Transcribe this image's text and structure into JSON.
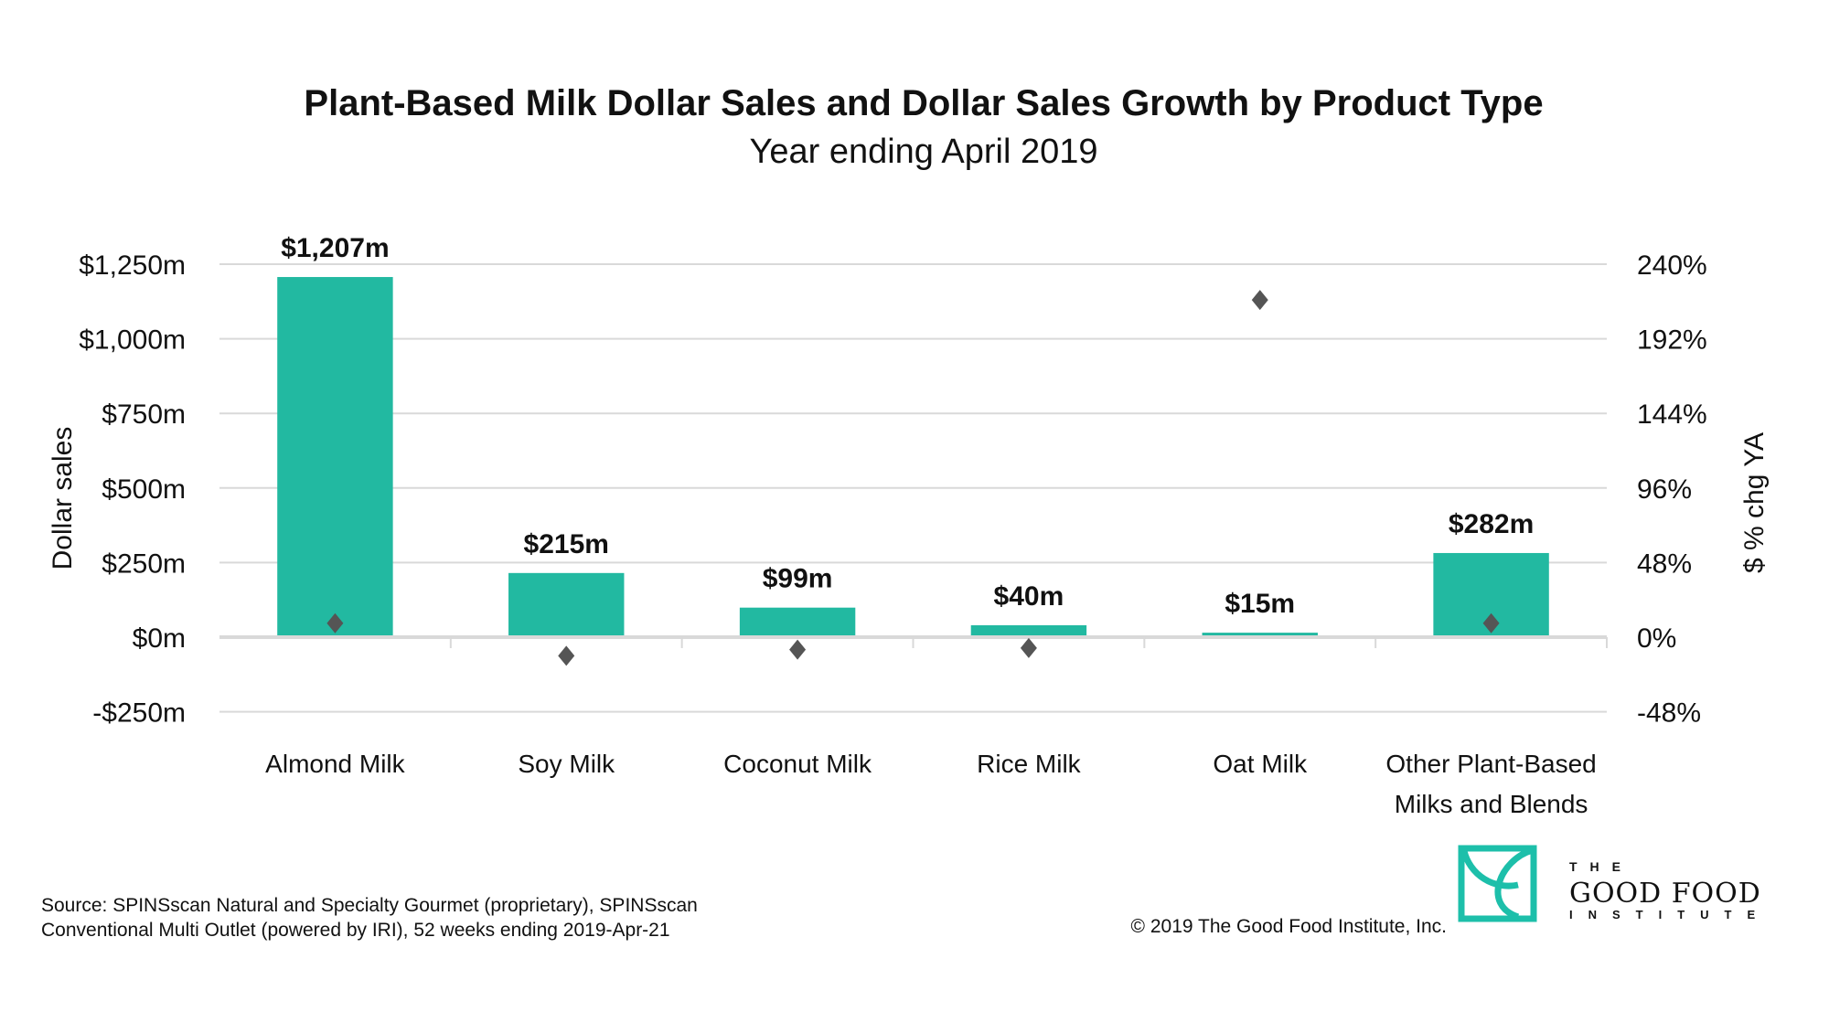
{
  "chart_data": {
    "type": "bar",
    "title": "Plant-Based Milk Dollar Sales and Dollar Sales Growth by Product Type",
    "subtitle": "Year ending April 2019",
    "categories": [
      [
        "Almond Milk"
      ],
      [
        "Soy Milk"
      ],
      [
        "Coconut Milk"
      ],
      [
        "Rice Milk"
      ],
      [
        "Oat Milk"
      ],
      [
        "Other Plant-Based",
        "Milks and Blends"
      ]
    ],
    "series": [
      {
        "type": "bar",
        "axis": "left",
        "values": [
          1207,
          215,
          99,
          40,
          15,
          282
        ],
        "labels": [
          "$1,207m",
          "$215m",
          "$99m",
          "$40m",
          "$15m",
          "$282m"
        ],
        "color": "#22b9a1"
      },
      {
        "type": "scatter",
        "marker": "diamond",
        "axis": "right",
        "values": [
          9,
          -12,
          -8,
          -7,
          217,
          9
        ],
        "color": "#555555"
      }
    ],
    "ylabel": "Dollar sales",
    "y2label": "$ % chg YA",
    "ylim": [
      -250,
      1250
    ],
    "y2lim": [
      -48,
      240
    ],
    "yticks": [
      -250,
      0,
      250,
      500,
      750,
      1000,
      1250
    ],
    "ytick_labels": [
      "-$250m",
      "$0m",
      "$250m",
      "$500m",
      "$750m",
      "$1,000m",
      "$1,250m"
    ],
    "y2tick_labels": [
      "-48%",
      "0%",
      "48%",
      "96%",
      "144%",
      "192%",
      "240%"
    ],
    "grid": true
  },
  "footer": {
    "source_lines": [
      "Source: SPINSscan Natural and Specialty Gourmet (proprietary), SPINSscan",
      "Conventional Multi Outlet (powered by IRI), 52 weeks ending 2019-Apr-21"
    ],
    "copyright": "© 2019 The Good Food Institute, Inc."
  },
  "logo": {
    "line1": "THE",
    "line2": "GOOD FOOD",
    "line3": "INSTITUTE",
    "color": "#1dbfaa"
  }
}
